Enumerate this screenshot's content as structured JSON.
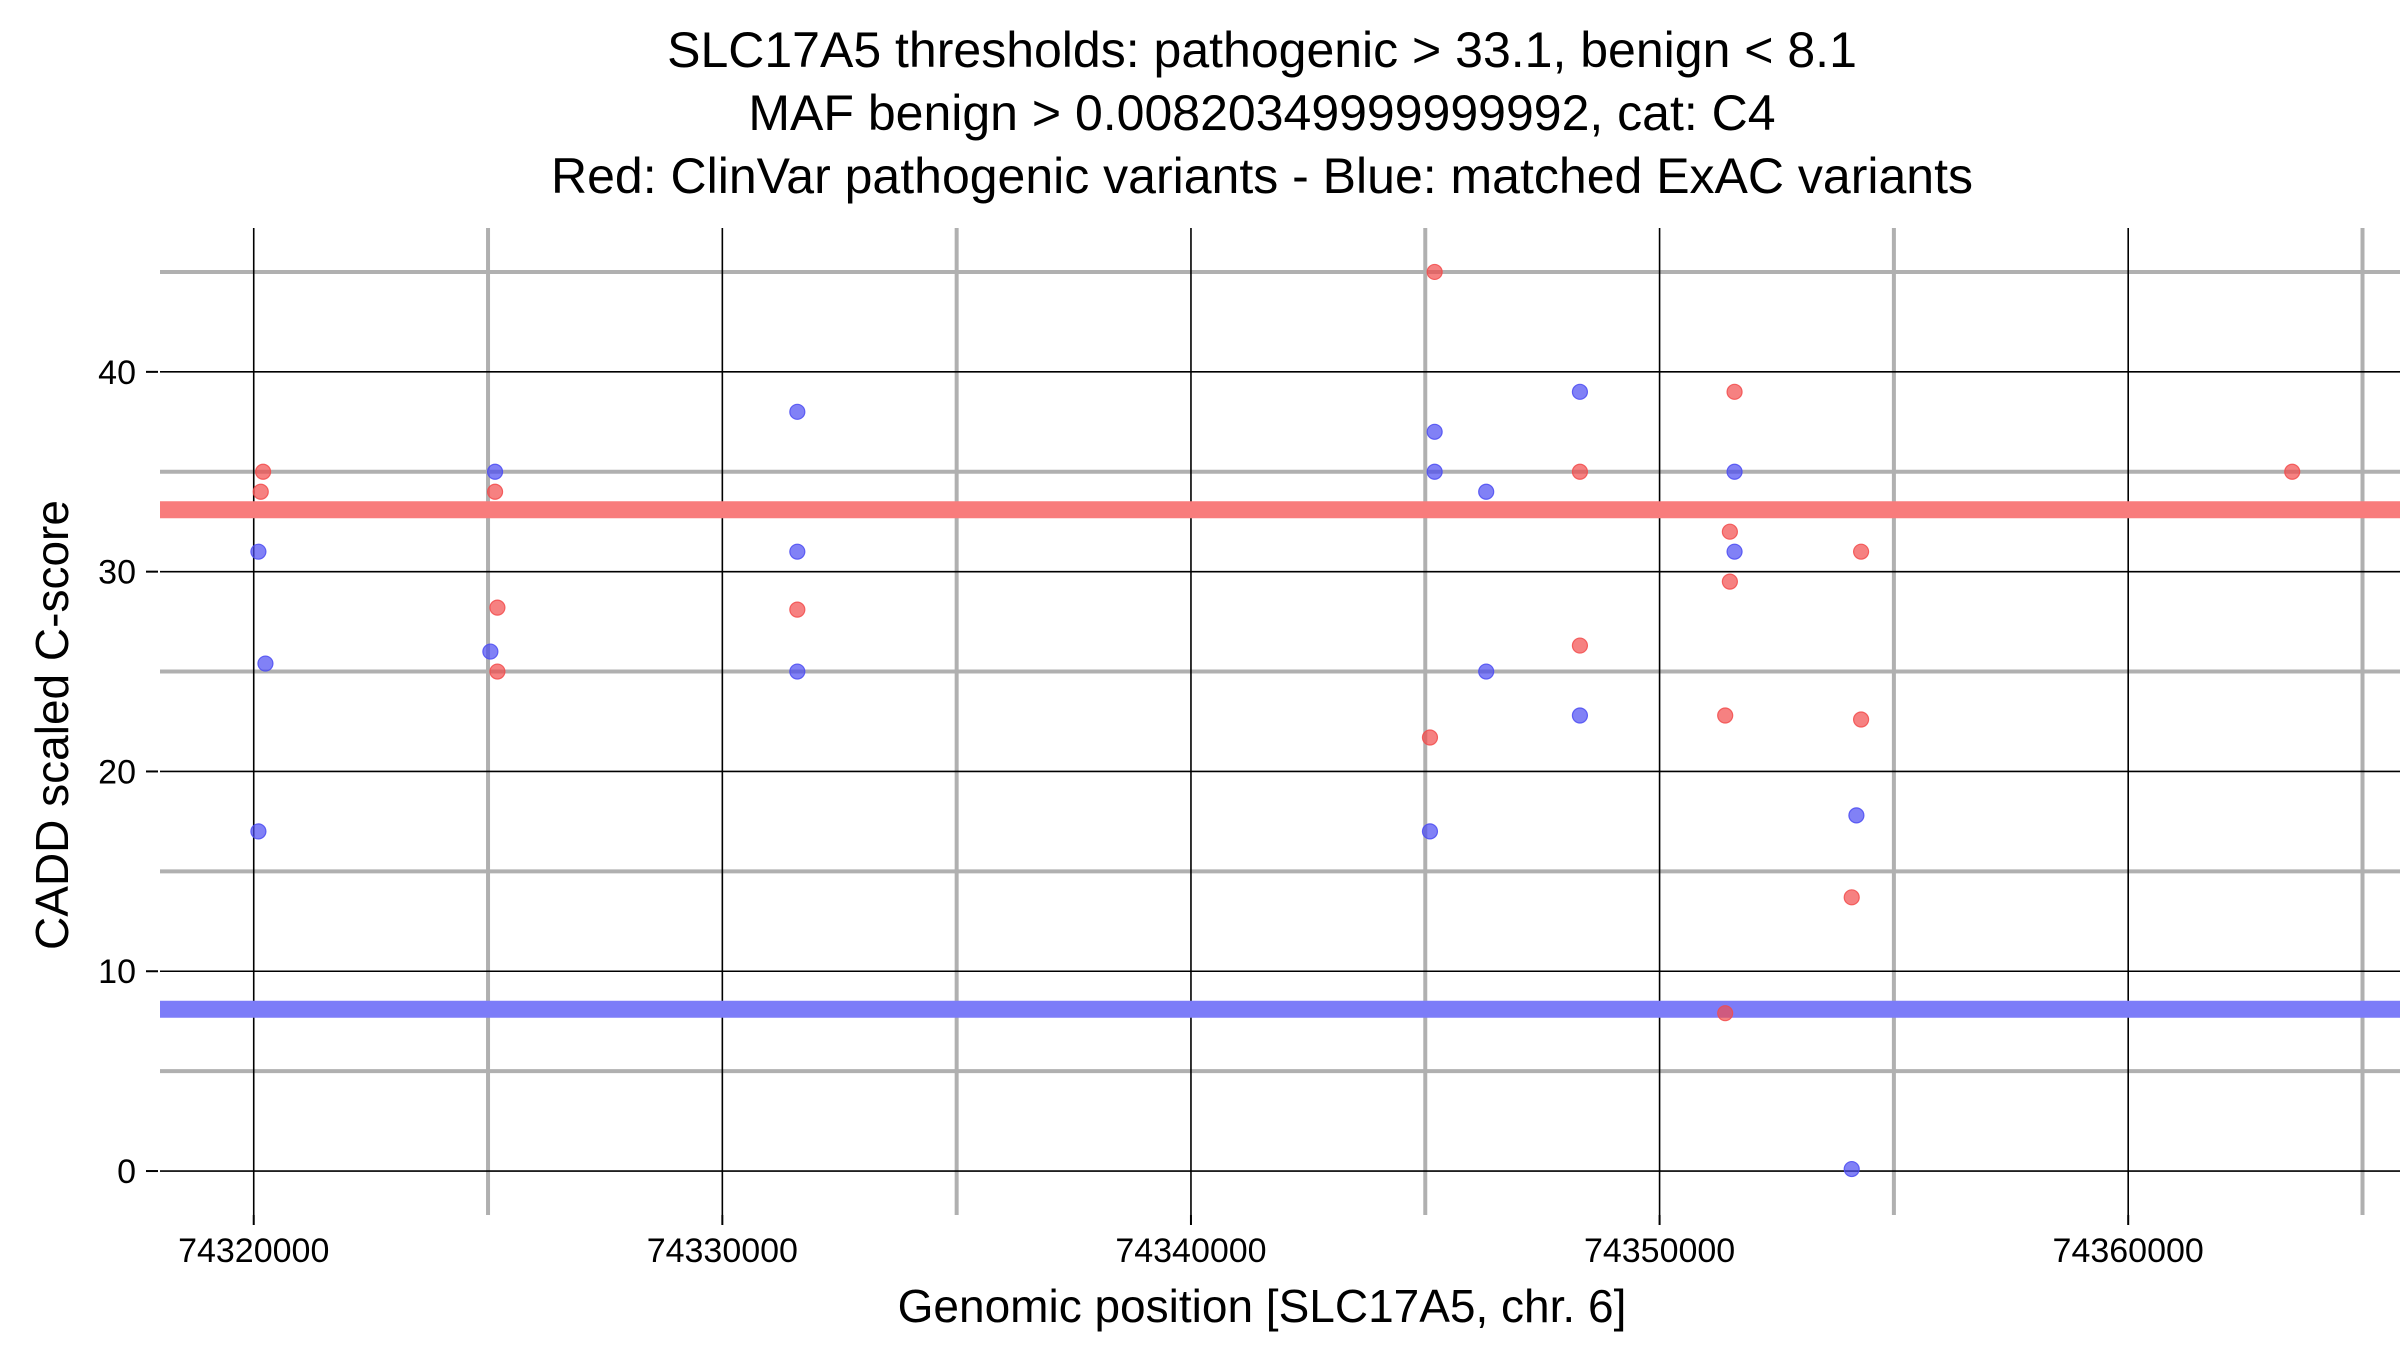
{
  "chart_data": {
    "type": "scatter",
    "title_lines": [
      "SLC17A5 thresholds: pathogenic > 33.1, benign < 8.1",
      "MAF benign > 0.00820349999999992, cat: C4",
      "Red: ClinVar pathogenic variants - Blue: matched ExAC variants"
    ],
    "xlabel": "Genomic position [SLC17A5, chr. 6]",
    "ylabel": "CADD scaled C-score",
    "xlim": [
      74318000,
      74365800
    ],
    "ylim": [
      -2.2,
      47.2
    ],
    "x_major_ticks": [
      74320000,
      74330000,
      74340000,
      74350000,
      74360000
    ],
    "x_tick_labels": [
      "74320000",
      "74330000",
      "74340000",
      "74350000",
      "74360000"
    ],
    "x_minor_grid": [
      74325000,
      74335000,
      74345000,
      74355000,
      74365000
    ],
    "y_major_ticks": [
      0,
      10,
      20,
      30,
      40
    ],
    "y_tick_labels": [
      "0",
      "10",
      "20",
      "30",
      "40"
    ],
    "y_minor_grid": [
      5,
      15,
      25,
      35,
      45
    ],
    "grid": true,
    "thresholds": [
      {
        "y": 33.1,
        "color": "#f87c7c"
      },
      {
        "y": 8.1,
        "color": "#7c7cf8"
      }
    ],
    "series": [
      {
        "color": "#f24b4b",
        "points": [
          {
            "x": 74320200,
            "y": 35
          },
          {
            "x": 74320150,
            "y": 34
          },
          {
            "x": 74325150,
            "y": 34
          },
          {
            "x": 74325200,
            "y": 28.2
          },
          {
            "x": 74325200,
            "y": 25
          },
          {
            "x": 74331600,
            "y": 28.1
          },
          {
            "x": 74345200,
            "y": 45
          },
          {
            "x": 74345100,
            "y": 21.7
          },
          {
            "x": 74348300,
            "y": 35
          },
          {
            "x": 74348300,
            "y": 26.3
          },
          {
            "x": 74351600,
            "y": 39
          },
          {
            "x": 74351500,
            "y": 32
          },
          {
            "x": 74351500,
            "y": 29.5
          },
          {
            "x": 74351400,
            "y": 22.8
          },
          {
            "x": 74351400,
            "y": 7.9
          },
          {
            "x": 74354300,
            "y": 31
          },
          {
            "x": 74354300,
            "y": 22.6
          },
          {
            "x": 74354100,
            "y": 13.7
          },
          {
            "x": 74363500,
            "y": 35
          }
        ]
      },
      {
        "color": "#4b4bf2",
        "points": [
          {
            "x": 74320100,
            "y": 31
          },
          {
            "x": 74320250,
            "y": 25.4
          },
          {
            "x": 74320100,
            "y": 17
          },
          {
            "x": 74325150,
            "y": 35
          },
          {
            "x": 74325050,
            "y": 26
          },
          {
            "x": 74331600,
            "y": 38
          },
          {
            "x": 74331600,
            "y": 31
          },
          {
            "x": 74331600,
            "y": 25
          },
          {
            "x": 74345200,
            "y": 37
          },
          {
            "x": 74345200,
            "y": 35
          },
          {
            "x": 74345100,
            "y": 17
          },
          {
            "x": 74346300,
            "y": 34
          },
          {
            "x": 74346300,
            "y": 25
          },
          {
            "x": 74348300,
            "y": 39
          },
          {
            "x": 74348300,
            "y": 22.8
          },
          {
            "x": 74351600,
            "y": 35
          },
          {
            "x": 74351600,
            "y": 31
          },
          {
            "x": 74354200,
            "y": 17.8
          },
          {
            "x": 74354100,
            "y": 0.1
          }
        ]
      }
    ]
  }
}
